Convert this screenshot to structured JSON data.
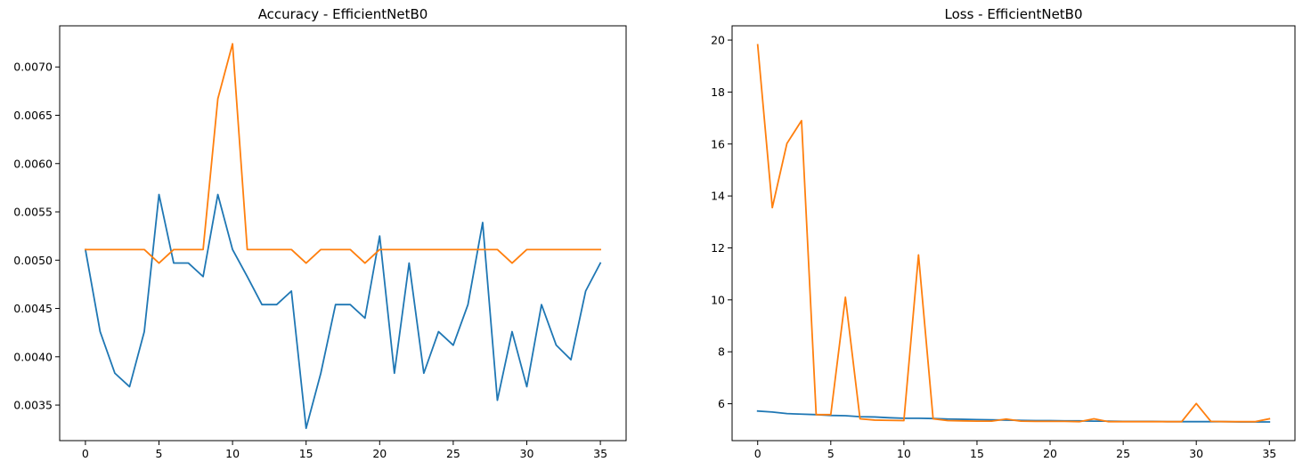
{
  "colors": {
    "series_1": "#1f77b4",
    "series_2": "#ff7f0e"
  },
  "chart_data": [
    {
      "type": "line",
      "title": "Accuracy - EfficientNetB0",
      "xlabel": "",
      "ylabel": "",
      "xlim": [
        -1.75,
        36.75
      ],
      "ylim": [
        0.003132,
        0.007426
      ],
      "xticks": [
        0,
        5,
        10,
        15,
        20,
        25,
        30,
        35
      ],
      "yticks": [
        0.0035,
        0.004,
        0.0045,
        0.005,
        0.0055,
        0.006,
        0.0065,
        0.007
      ],
      "ytick_labels": [
        "0.0035",
        "0.0040",
        "0.0045",
        "0.0050",
        "0.0055",
        "0.0060",
        "0.0065",
        "0.0070"
      ],
      "grid": false,
      "legend": false,
      "x": [
        0,
        1,
        2,
        3,
        4,
        5,
        6,
        7,
        8,
        9,
        10,
        11,
        12,
        13,
        14,
        15,
        16,
        17,
        18,
        19,
        20,
        21,
        22,
        23,
        24,
        25,
        26,
        27,
        28,
        29,
        30,
        31,
        32,
        33,
        34,
        35
      ],
      "series": [
        {
          "color": "#1f77b4",
          "values": [
            0.00511,
            0.00426,
            0.00383,
            0.00369,
            0.00426,
            0.00568,
            0.00497,
            0.00497,
            0.00483,
            0.00568,
            0.00511,
            0.00483,
            0.00454,
            0.00454,
            0.00468,
            0.00326,
            0.00383,
            0.00454,
            0.00454,
            0.0044,
            0.00525,
            0.00383,
            0.00497,
            0.00383,
            0.00426,
            0.00412,
            0.00454,
            0.00539,
            0.00355,
            0.00426,
            0.00369,
            0.00454,
            0.00412,
            0.00397,
            0.00468,
            0.00497
          ]
        },
        {
          "color": "#ff7f0e",
          "values": [
            0.00511,
            0.00511,
            0.00511,
            0.00511,
            0.00511,
            0.00497,
            0.00511,
            0.00511,
            0.00511,
            0.00667,
            0.00724,
            0.00511,
            0.00511,
            0.00511,
            0.00511,
            0.00497,
            0.00511,
            0.00511,
            0.00511,
            0.00497,
            0.00511,
            0.00511,
            0.00511,
            0.00511,
            0.00511,
            0.00511,
            0.00511,
            0.00511,
            0.00511,
            0.00497,
            0.00511,
            0.00511,
            0.00511,
            0.00511,
            0.00511,
            0.00511
          ]
        }
      ]
    },
    {
      "type": "line",
      "title": "Loss - EfficientNetB0",
      "xlabel": "",
      "ylabel": "",
      "xlim": [
        -1.75,
        36.75
      ],
      "ylim": [
        4.58,
        20.55
      ],
      "xticks": [
        0,
        5,
        10,
        15,
        20,
        25,
        30,
        35
      ],
      "yticks": [
        6,
        8,
        10,
        12,
        14,
        16,
        18,
        20
      ],
      "ytick_labels": [
        "6",
        "8",
        "10",
        "12",
        "14",
        "16",
        "18",
        "20"
      ],
      "grid": false,
      "legend": false,
      "x": [
        0,
        1,
        2,
        3,
        4,
        5,
        6,
        7,
        8,
        9,
        10,
        11,
        12,
        13,
        14,
        15,
        16,
        17,
        18,
        19,
        20,
        21,
        22,
        23,
        24,
        25,
        26,
        27,
        28,
        29,
        30,
        31,
        32,
        33,
        34,
        35
      ],
      "series": [
        {
          "color": "#1f77b4",
          "values": [
            5.72,
            5.68,
            5.62,
            5.6,
            5.58,
            5.55,
            5.54,
            5.5,
            5.49,
            5.46,
            5.44,
            5.44,
            5.43,
            5.41,
            5.4,
            5.39,
            5.38,
            5.37,
            5.36,
            5.35,
            5.35,
            5.34,
            5.34,
            5.33,
            5.33,
            5.32,
            5.32,
            5.32,
            5.31,
            5.31,
            5.31,
            5.31,
            5.31,
            5.3,
            5.3,
            5.3
          ]
        },
        {
          "color": "#ff7f0e",
          "values": [
            19.82,
            13.55,
            16.02,
            16.9,
            5.58,
            5.58,
            10.1,
            5.42,
            5.37,
            5.36,
            5.35,
            11.73,
            5.42,
            5.35,
            5.34,
            5.33,
            5.33,
            5.41,
            5.33,
            5.32,
            5.32,
            5.32,
            5.31,
            5.42,
            5.31,
            5.31,
            5.31,
            5.31,
            5.31,
            5.31,
            6.01,
            5.32,
            5.31,
            5.31,
            5.31,
            5.42
          ]
        }
      ]
    }
  ]
}
